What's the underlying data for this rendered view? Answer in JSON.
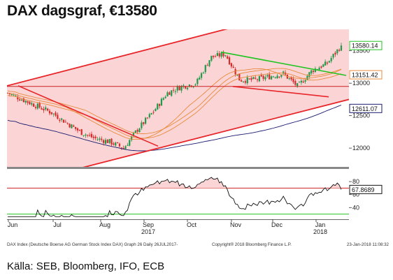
{
  "header": {
    "title": "DAX dagsgraf, €13580",
    "source": "Källa: SEB, Bloomberg, IFO, ECB"
  },
  "footer": {
    "left": "DAX Index (Deutsche Boerse AG German Stock Index DAX) Graph 26  Daily 26JUL2017-",
    "right": "Copyright® 2018 Bloomberg Finance L.P.",
    "date": "23-Jan-2018 11:08:32"
  },
  "colors": {
    "channel_fill": "#fbd5d5",
    "channel_line": "#e8262a",
    "trend_line": "#22c422",
    "level_line": "#cc2020",
    "ma_line": "#e88a3c",
    "ma_long": "#1a1a6e",
    "candle_up": "#1f9a4a",
    "candle_down": "#d42b2b",
    "rsi_line": "#111111",
    "rsi_overbought": "#cc2020",
    "rsi_oversold": "#22c422"
  },
  "chart_data": [
    {
      "type": "candlestick",
      "title": "DAX dagsgraf, €13580",
      "x_ticks": [
        "Jun",
        "Jul",
        "Aug",
        "Sep",
        "Oct",
        "Nov",
        "Dec",
        "Jan"
      ],
      "x_year_labels": [
        {
          "month": "Sep",
          "year": "2017"
        },
        {
          "month": "Jan",
          "year": "2018"
        }
      ],
      "y_ticks": [
        12000,
        12500,
        13000,
        13500
      ],
      "ylim": [
        11700,
        13830
      ],
      "grid": false,
      "series_close": [
        {
          "month": "Jun",
          "close": 12850
        },
        {
          "month": "Jun-mid",
          "close": 12750
        },
        {
          "month": "Jun-end",
          "close": 12650
        },
        {
          "month": "Jul",
          "close": 12550
        },
        {
          "month": "Jul-mid",
          "close": 12400
        },
        {
          "month": "Jul-end",
          "close": 12250
        },
        {
          "month": "Aug",
          "close": 12150
        },
        {
          "month": "Aug-mid",
          "close": 12100
        },
        {
          "month": "Aug-end",
          "close": 12000
        },
        {
          "month": "Sep",
          "close": 12300
        },
        {
          "month": "Sep-mid",
          "close": 12550
        },
        {
          "month": "Sep-end",
          "close": 12850
        },
        {
          "month": "Oct",
          "close": 12950
        },
        {
          "month": "Oct-mid",
          "close": 13000
        },
        {
          "month": "Oct-end",
          "close": 13400
        },
        {
          "month": "Nov",
          "close": 13450
        },
        {
          "month": "Nov-mid",
          "close": 13050
        },
        {
          "month": "Nov-end",
          "close": 13050
        },
        {
          "month": "Dec",
          "close": 13100
        },
        {
          "month": "Dec-mid",
          "close": 13150
        },
        {
          "month": "Dec-end",
          "close": 12950
        },
        {
          "month": "Jan",
          "close": 13200
        },
        {
          "month": "Jan-mid",
          "close": 13300
        },
        {
          "month": "Jan-end",
          "close": 13580
        }
      ],
      "price_tags": [
        {
          "label": "13580.14",
          "value": 13580.14,
          "color": "#22c422"
        },
        {
          "label": "13151.42",
          "value": 13151.42,
          "color": "#e88a3c"
        },
        {
          "label": "12611.07",
          "value": 12611.07,
          "color": "#1a1a6e"
        }
      ],
      "levels": [
        {
          "value": 12950
        }
      ]
    },
    {
      "type": "line",
      "title": "",
      "y_ticks": [
        40,
        60,
        80
      ],
      "ylim": [
        22,
        93
      ],
      "overbought": 70,
      "oversold": 30,
      "last_label": "67.8689",
      "last_value": 67.8689
    }
  ]
}
